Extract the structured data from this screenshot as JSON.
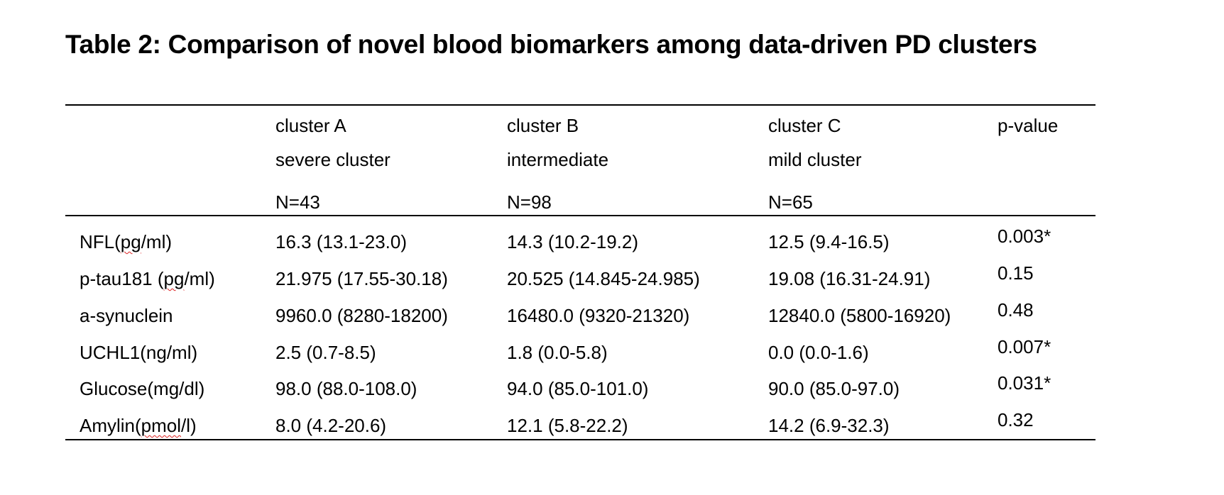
{
  "title": "Table 2: Comparison of novel blood biomarkers among data-driven PD clusters",
  "table": {
    "header": {
      "cluster_a": {
        "name": "cluster A",
        "desc": "severe cluster",
        "n": "N=43"
      },
      "cluster_b": {
        "name": "cluster B",
        "desc": "intermediate",
        "n": "N=98"
      },
      "cluster_c": {
        "name": "cluster C",
        "desc": "mild cluster",
        "n": "N=65"
      },
      "pvalue": "p-value"
    },
    "rows": [
      {
        "label_pre": "NFL(",
        "label_mark": "pg",
        "label_post": "/ml)",
        "a": "16.3 (13.1-23.0)",
        "b": "14.3 (10.2-19.2)",
        "c": "12.5 (9.4-16.5)",
        "p": "0.003*"
      },
      {
        "label_pre": "p-tau181 (",
        "label_mark": "pg",
        "label_post": "/ml)",
        "a": "21.975 (17.55-30.18)",
        "b": "20.525 (14.845-24.985)",
        "c": "19.08 (16.31-24.91)",
        "p": "0.15"
      },
      {
        "label": "a-synuclein",
        "a": "9960.0 (8280-18200)",
        "b": "16480.0 (9320-21320)",
        "c": "12840.0 (5800-16920)",
        "p": "0.48"
      },
      {
        "label": "UCHL1(ng/ml)",
        "a": "2.5 (0.7-8.5)",
        "b": "1.8 (0.0-5.8)",
        "c": "0.0 (0.0-1.6)",
        "p": "0.007*"
      },
      {
        "label": "Glucose(mg/dl)",
        "a": "98.0 (88.0-108.0)",
        "b": "94.0 (85.0-101.0)",
        "c": "90.0 (85.0-97.0)",
        "p": "0.031*"
      },
      {
        "label_pre": "Amylin(",
        "label_mark": "pmol",
        "label_post": "/l)",
        "a": "8.0 (4.2-20.6)",
        "b": "12.1 (5.8-22.2)",
        "c": "14.2 (6.9-32.3)",
        "p": "0.32"
      }
    ]
  }
}
